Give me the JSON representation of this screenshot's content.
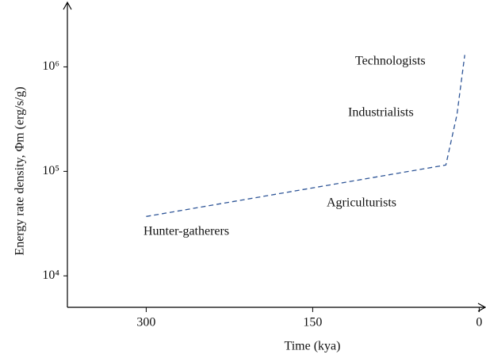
{
  "chart_data": {
    "type": "line",
    "xlabel": "Time (kya)",
    "ylabel": "Energy rate density, Φm (erg/s/g)",
    "xlim": [
      371,
      -4
    ],
    "xticks": [
      300,
      150,
      0
    ],
    "ylim": [
      5000,
      4000000
    ],
    "log_y": true,
    "yticks": [
      {
        "value": 10000,
        "label": "10⁴"
      },
      {
        "value": 100000,
        "label": "10⁵"
      },
      {
        "value": 1000000,
        "label": "10⁶"
      }
    ],
    "series": [
      {
        "color": "#2e5597",
        "dashed": true,
        "x": [
          300,
          30,
          20,
          13
        ],
        "values": [
          37000,
          115000,
          350000,
          1300000
        ]
      }
    ],
    "annotations": [
      "Technologists",
      "Industrialists",
      "Agriculturists",
      "Hunter-gatherers"
    ]
  }
}
